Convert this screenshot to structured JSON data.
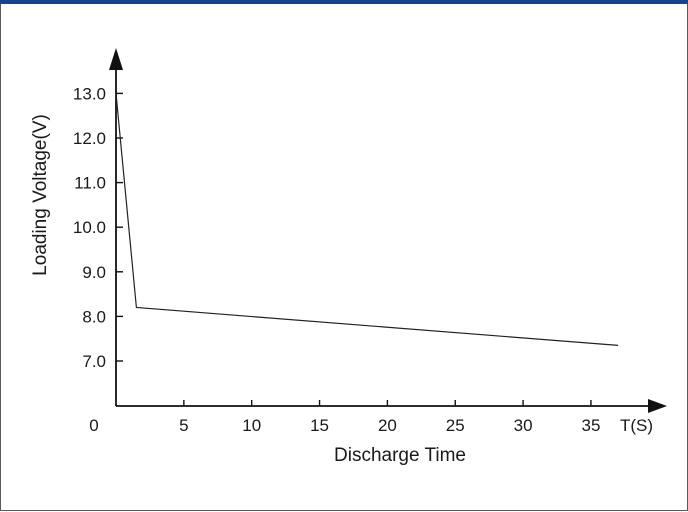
{
  "chart_data": {
    "type": "line",
    "xlabel": "Discharge Time",
    "xunit": "T(S)",
    "ylabel": "Loading Voltage(V)",
    "origin_label": "0",
    "xlim": [
      0,
      40
    ],
    "ylim": [
      6.0,
      14.0
    ],
    "x_ticks": [
      5,
      10,
      15,
      20,
      25,
      30,
      35
    ],
    "x_tick_labels": [
      "5",
      "10",
      "15",
      "20",
      "25",
      "30",
      "35"
    ],
    "y_ticks": [
      7.0,
      8.0,
      9.0,
      10.0,
      11.0,
      12.0,
      13.0
    ],
    "y_tick_labels": [
      "7.0",
      "8.0",
      "9.0",
      "10.0",
      "11.0",
      "12.0",
      "13.0"
    ],
    "grid": false,
    "series": [
      {
        "x": [
          0,
          1.5,
          37
        ],
        "y": [
          13.0,
          8.2,
          7.35
        ]
      }
    ]
  },
  "colors": {
    "header_bar": "#1d3f8f",
    "axis": "#111111",
    "line": "#222222"
  }
}
